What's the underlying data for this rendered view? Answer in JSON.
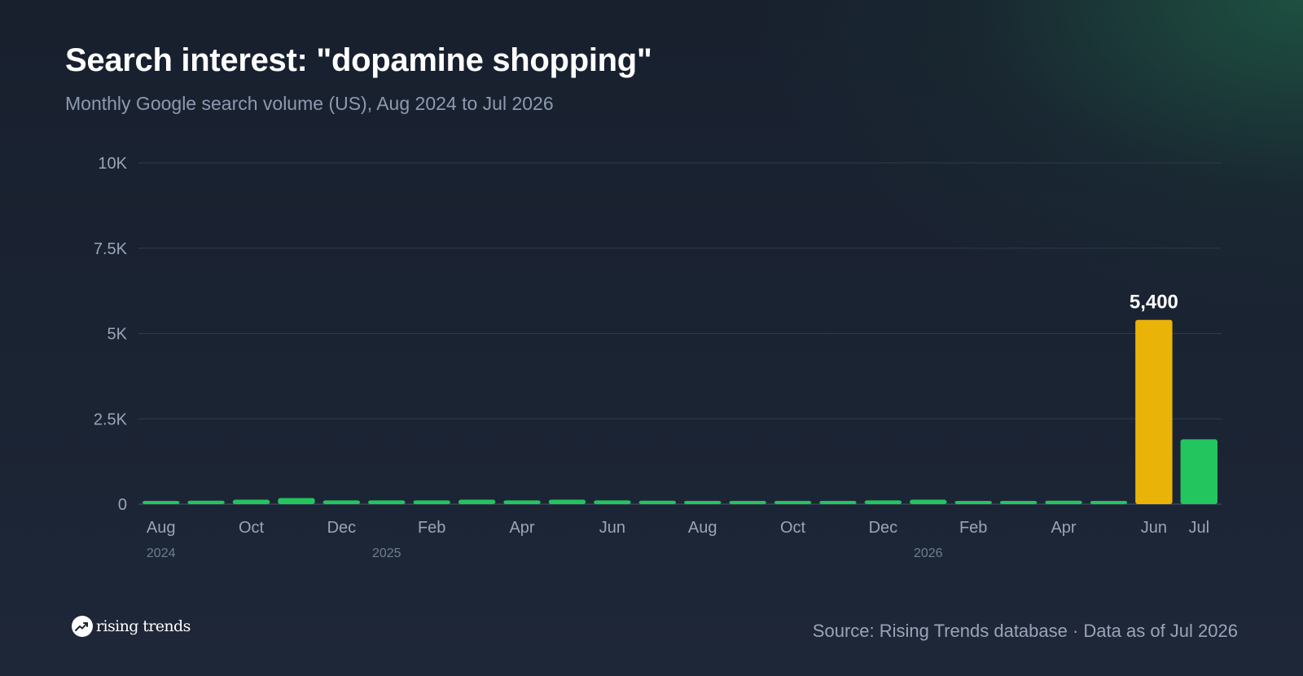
{
  "header": {
    "title": "Search interest: \"dopamine shopping\"",
    "subtitle": "Monthly Google search volume (US), Aug 2024 to Jul 2026"
  },
  "footer": {
    "logo_text": "rising trends",
    "logo_icon": "trend-up-icon",
    "source": "Source: Rising Trends database · Data as of Jul 2026"
  },
  "colors": {
    "bar": "#22c55e",
    "highlight": "#eab308",
    "gridline": "#2f3a4a",
    "axis_text": "#98a5b8",
    "year_text": "#6f7d92"
  },
  "chart_data": {
    "type": "bar",
    "title": "Search interest: \"dopamine shopping\"",
    "subtitle": "Monthly Google search volume (US), Aug 2024 to Jul 2026",
    "categories": [
      "2024-08",
      "2024-09",
      "2024-10",
      "2024-11",
      "2024-12",
      "2025-01",
      "2025-02",
      "2025-03",
      "2025-04",
      "2025-05",
      "2025-06",
      "2025-07",
      "2025-08",
      "2025-09",
      "2025-10",
      "2025-11",
      "2025-12",
      "2026-01",
      "2026-02",
      "2026-03",
      "2026-04",
      "2026-05",
      "2026-06",
      "2026-07"
    ],
    "values": [
      80,
      100,
      130,
      180,
      110,
      110,
      110,
      130,
      110,
      130,
      110,
      100,
      80,
      80,
      80,
      80,
      110,
      130,
      80,
      80,
      100,
      80,
      5400,
      1900
    ],
    "tick_labels": [
      {
        "index": 0,
        "label": "Aug"
      },
      {
        "index": 2,
        "label": "Oct"
      },
      {
        "index": 4,
        "label": "Dec"
      },
      {
        "index": 6,
        "label": "Feb"
      },
      {
        "index": 8,
        "label": "Apr"
      },
      {
        "index": 10,
        "label": "Jun"
      },
      {
        "index": 12,
        "label": "Aug"
      },
      {
        "index": 14,
        "label": "Oct"
      },
      {
        "index": 16,
        "label": "Dec"
      },
      {
        "index": 18,
        "label": "Feb"
      },
      {
        "index": 20,
        "label": "Apr"
      },
      {
        "index": 22,
        "label": "Jun"
      },
      {
        "index": 23,
        "label": "Jul"
      }
    ],
    "year_labels": [
      {
        "index": 0,
        "label": "2024"
      },
      {
        "index": 5,
        "label": "2025"
      },
      {
        "index": 17,
        "label": "2026"
      }
    ],
    "y_ticks": [
      {
        "value": 0,
        "label": "0"
      },
      {
        "value": 2500,
        "label": "2.5K"
      },
      {
        "value": 5000,
        "label": "5K"
      },
      {
        "value": 7500,
        "label": "7.5K"
      },
      {
        "value": 10000,
        "label": "10K"
      }
    ],
    "ylim": [
      0,
      10000
    ],
    "highlight_index": 22,
    "annotation": {
      "index": 22,
      "label": "5,400"
    },
    "grid": true,
    "legend": "none"
  }
}
